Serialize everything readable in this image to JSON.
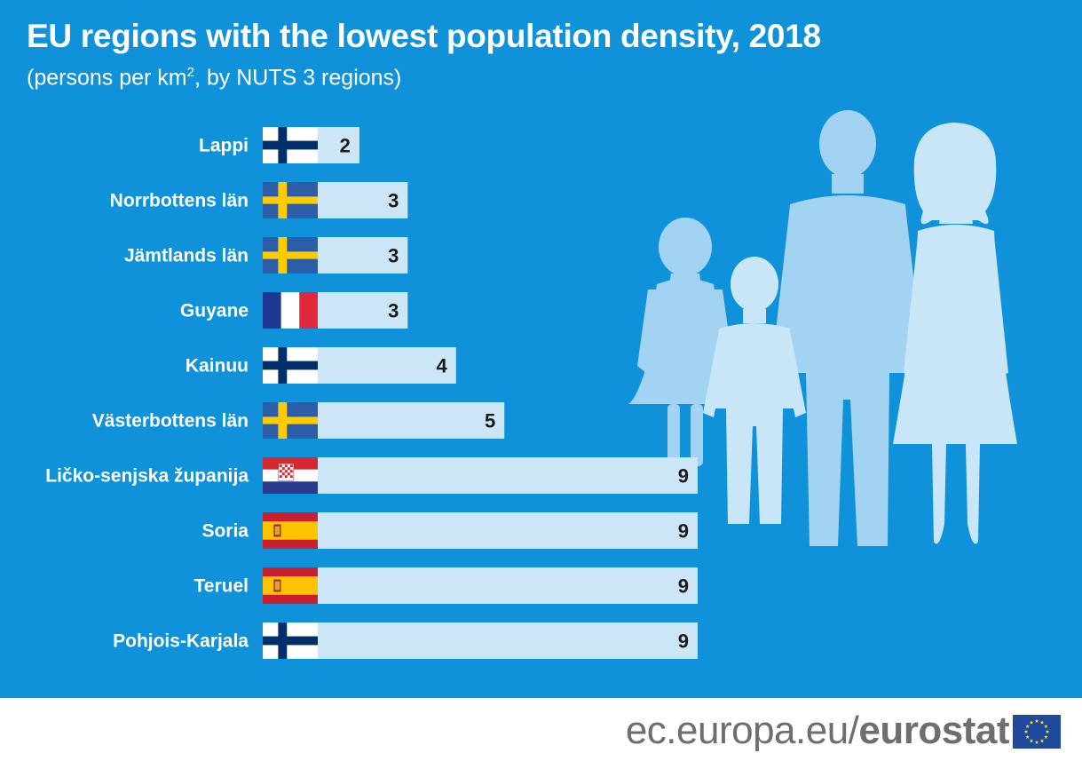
{
  "title": "EU regions with the lowest population density, 2018",
  "subtitle_main": "(persons per km",
  "subtitle_sup": "2",
  "subtitle_rest": ", by NUTS 3 regions)",
  "chart_data": {
    "type": "bar",
    "orientation": "horizontal",
    "title": "EU regions with the lowest population density, 2018",
    "subtitle": "(persons per km², by NUTS 3 regions)",
    "categories": [
      "Lappi",
      "Norrbottens län",
      "Jämtlands län",
      "Guyane",
      "Kainuu",
      "Västerbottens län",
      "Ličko-senjska županija",
      "Soria",
      "Teruel",
      "Pohjois-Karjala"
    ],
    "values": [
      2,
      3,
      3,
      3,
      4,
      5,
      9,
      9,
      9,
      9
    ],
    "flags": [
      "finland",
      "sweden",
      "sweden",
      "france",
      "finland",
      "sweden",
      "croatia",
      "spain",
      "spain",
      "finland"
    ],
    "xlim": [
      0,
      9
    ],
    "bar_color": "#cce6f7",
    "value_color": "#1a1a1a",
    "label_color": "#ffffff",
    "grid": false,
    "legend": "none"
  },
  "colors": {
    "background": "#0f92d9",
    "silhouette_light": "#c8e6f8",
    "silhouette_mid": "#a2d3f2",
    "footer_text": "#6e6e6e",
    "eu_blue": "#1f4a9c",
    "eu_star": "#ffdd00"
  },
  "footer": {
    "url_prefix": "ec.europa.eu/",
    "url_brand": "eurostat"
  },
  "icons": {
    "people": "family-silhouette-icon",
    "eu": "eu-flag-icon"
  }
}
